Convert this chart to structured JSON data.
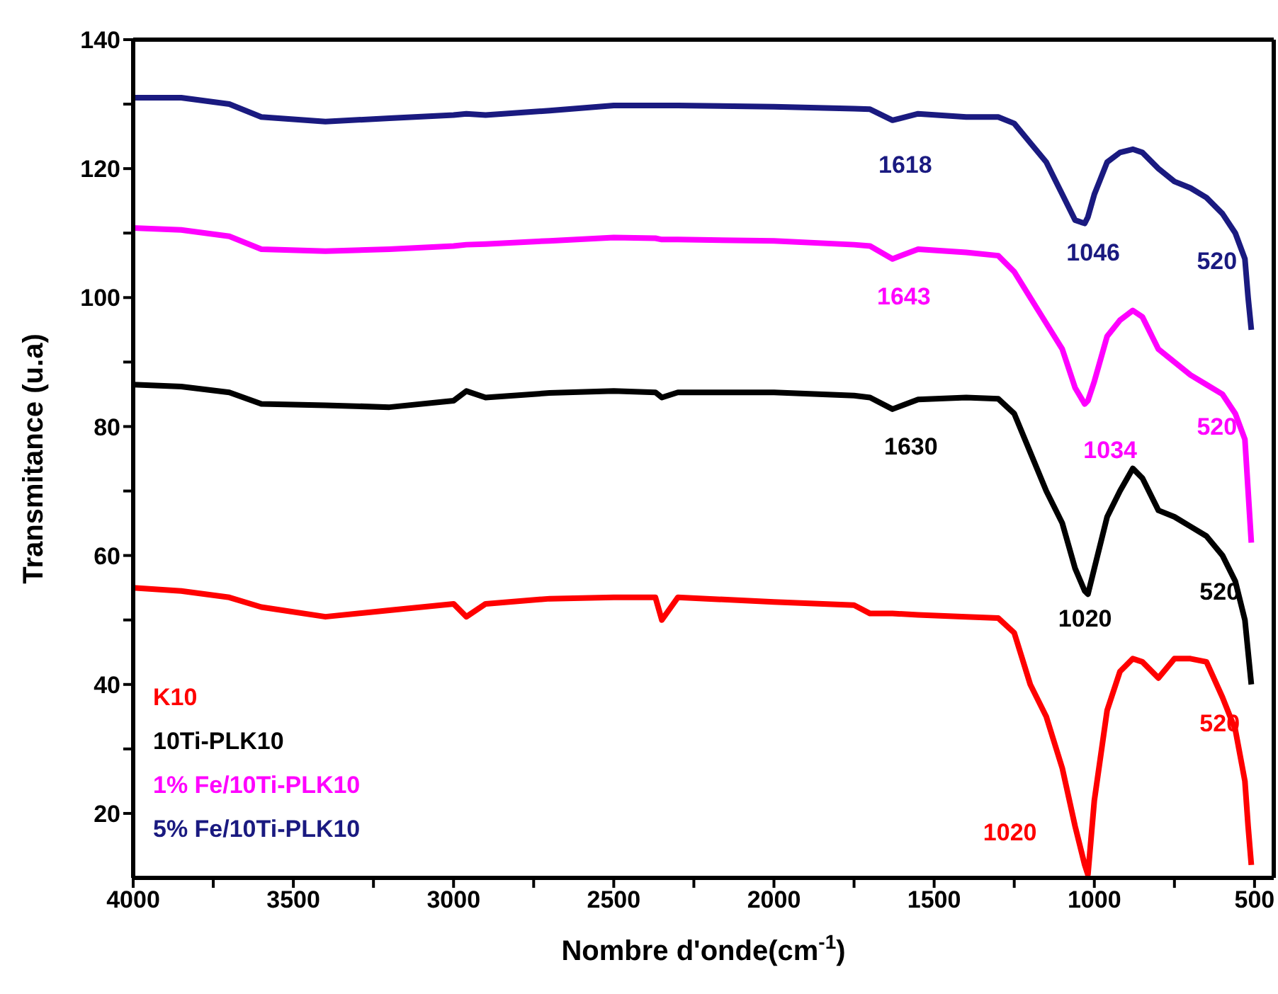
{
  "chart_data": {
    "type": "line",
    "xlabel": "Nombre d'onde(cm$^{-1}$)",
    "ylabel": "Transmitance (u.a)",
    "x": [
      4000,
      3850,
      3700,
      3600,
      3400,
      3200,
      3000,
      2960,
      2900,
      2700,
      2500,
      2370,
      2350,
      2300,
      2000,
      1750,
      1700,
      1630,
      1550,
      1400,
      1300,
      1250,
      1200,
      1150,
      1100,
      1060,
      1030,
      1020,
      1000,
      960,
      920,
      880,
      850,
      800,
      750,
      700,
      650,
      600,
      560,
      530,
      520,
      510
    ],
    "series": [
      {
        "name": "K10",
        "color": "#ff0000",
        "values": [
          55,
          54.5,
          53.5,
          52,
          50.5,
          51.5,
          52.5,
          50.5,
          52.5,
          53.3,
          53.5,
          53.5,
          50,
          53.5,
          52.8,
          52.3,
          51,
          51,
          50.8,
          50.5,
          50.3,
          48,
          40,
          35,
          27,
          18,
          12,
          10.5,
          22,
          36,
          42,
          44,
          43.5,
          41,
          44,
          44,
          43.5,
          38,
          33,
          25,
          18,
          12
        ]
      },
      {
        "name": "10Ti-PLK10",
        "color": "#000000",
        "values": [
          86.5,
          86.2,
          85.3,
          83.5,
          83.3,
          83,
          84,
          85.5,
          84.5,
          85.2,
          85.5,
          85.3,
          84.5,
          85.3,
          85.3,
          84.8,
          84.5,
          82.7,
          84.2,
          84.5,
          84.3,
          82,
          76,
          70,
          65,
          58,
          54.5,
          54,
          58,
          66,
          70,
          73.5,
          72,
          67,
          66,
          64.5,
          63,
          60,
          56,
          50,
          45,
          40
        ]
      },
      {
        "name": "1% Fe/10Ti-PLK10",
        "color": "#ff00ff",
        "values": [
          110.8,
          110.5,
          109.5,
          107.5,
          107.2,
          107.5,
          108,
          108.2,
          108.3,
          108.8,
          109.3,
          109.2,
          109,
          109,
          108.8,
          108.2,
          108,
          106,
          107.5,
          107,
          106.5,
          104,
          100,
          96,
          92,
          86,
          83.5,
          84,
          87,
          94,
          96.5,
          98,
          97,
          92,
          90,
          88,
          86.5,
          85,
          82,
          78,
          70,
          62
        ]
      },
      {
        "name": "5% Fe/10Ti-PLK10",
        "color": "#1a1a80",
        "values": [
          131,
          131,
          130,
          128,
          127.3,
          127.8,
          128.3,
          128.5,
          128.3,
          129,
          129.8,
          129.8,
          129.8,
          129.8,
          129.6,
          129.3,
          129.2,
          127.5,
          128.5,
          128,
          128,
          127,
          124,
          121,
          116,
          112,
          111.5,
          112.5,
          116,
          121,
          122.5,
          123,
          122.5,
          120,
          118,
          117,
          115.5,
          113,
          110,
          106,
          100,
          95
        ]
      }
    ],
    "xlim": [
      4000,
      440
    ],
    "ylim": [
      10,
      140
    ],
    "xticks": [
      4000,
      {
        "value": 3750,
        "label": null
      },
      3500,
      {
        "value": 3250,
        "label": null
      },
      3000,
      {
        "value": 2750,
        "label": null
      },
      2500,
      {
        "value": 2250,
        "label": null
      },
      2000,
      {
        "value": 1750,
        "label": null
      },
      1500,
      {
        "value": 1250,
        "label": null
      },
      1000,
      {
        "value": 750,
        "label": null
      },
      500
    ],
    "yticks": [
      20,
      {
        "value": 30,
        "label": null
      },
      40,
      {
        "value": 50,
        "label": null
      },
      60,
      {
        "value": 70,
        "label": null
      },
      80,
      {
        "value": 90,
        "label": null
      },
      100,
      {
        "value": 110,
        "label": null
      },
      120,
      {
        "value": 130,
        "label": null
      },
      140
    ],
    "annotations": [
      {
        "text": "1618",
        "x": 1630,
        "y": 127.5
      },
      {
        "text": "1046",
        "x": 1030,
        "y": 111.5
      },
      {
        "text": "520",
        "x": 520,
        "y": 100
      },
      {
        "text": "1643",
        "x": 1630,
        "y": 106
      },
      {
        "text": "1034",
        "x": 1030,
        "y": 83.5
      },
      {
        "text": "520",
        "x": 520,
        "y": 70
      },
      {
        "text": "1630",
        "x": 1630,
        "y": 82.7
      },
      {
        "text": "1020",
        "x": 1020,
        "y": 54
      },
      {
        "text": "520",
        "x": 560,
        "y": 56
      },
      {
        "text": "1020",
        "x": 1020,
        "y": 10.5
      },
      {
        "text": "520",
        "x": 560,
        "y": 33
      }
    ],
    "legend": "bottom left",
    "grid": false,
    "marker": "none",
    "line_style": "solid"
  }
}
